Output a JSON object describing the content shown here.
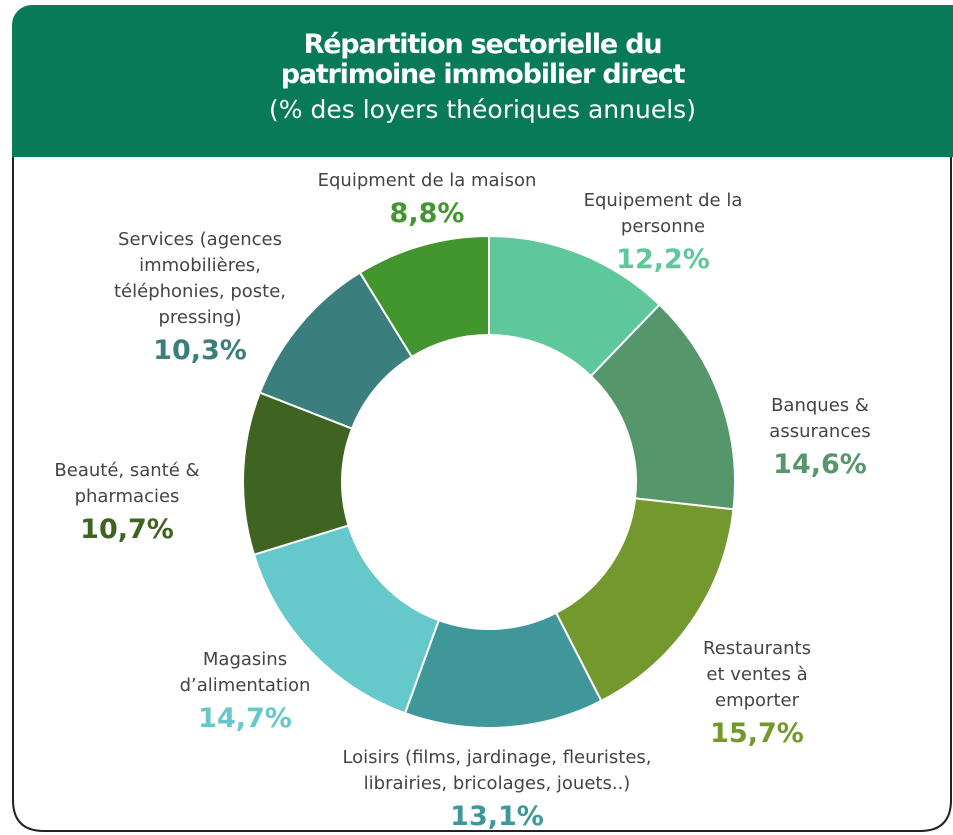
{
  "chart_data": {
    "type": "donut",
    "title": "Répartition sectorielle du patrimoine immobilier direct",
    "subtitle": "(% des loyers théoriques annuels)",
    "categories": [
      "Equipement de la personne",
      "Banques & assurances",
      "Restaurants et ventes à emporter",
      "Loisirs (films, jardinage, fleuristes, librairies, bricolages, jouets..)",
      "Magasins d’alimentation",
      "Beauté, santé & pharmacies",
      "Services (agences immobilières, téléphonies, poste, pressing)",
      "Equipment de la maison"
    ],
    "values": [
      12.2,
      14.6,
      15.7,
      13.1,
      14.7,
      10.7,
      10.3,
      8.8
    ],
    "value_labels": [
      "12,2%",
      "14,6%",
      "15,7%",
      "13,1%",
      "14,7%",
      "10,7%",
      "10,3%",
      "8,8%"
    ],
    "colors": [
      "#5ec89b",
      "#55976a",
      "#72982e",
      "#40979a",
      "#65c8cb",
      "#3f6320",
      "#3a7e7d",
      "#43962e"
    ]
  }
}
